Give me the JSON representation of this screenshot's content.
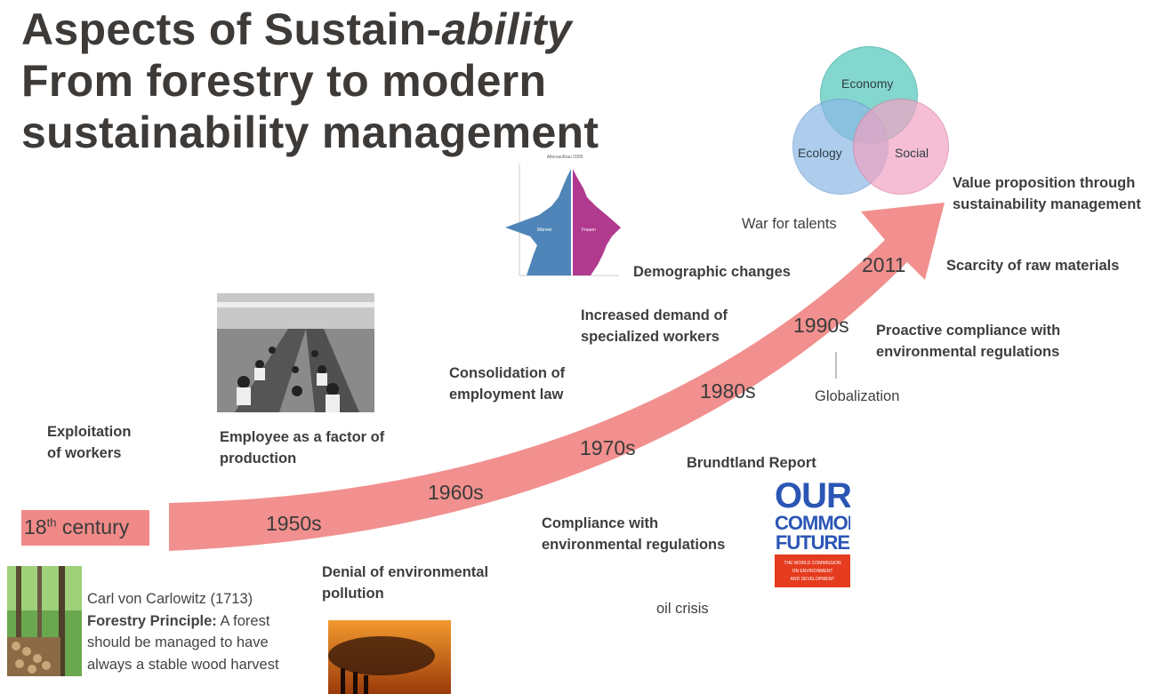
{
  "title": {
    "line1a": "Aspects of Sustain-",
    "line1b": "ability",
    "line2": "From forestry to modern",
    "line3": "sustainability management"
  },
  "venn": {
    "economy": "Economy",
    "ecology": "Ecology",
    "social": "Social",
    "colors": {
      "economy": "#6fd1c6",
      "ecology": "#8cb9e6",
      "social": "#f2a3c3"
    }
  },
  "timeline": {
    "arrow_color": "#f08a88",
    "eras": {
      "c18_pre": "18",
      "c18_sup": "th",
      "c18_post": " century",
      "e1950": "1950s",
      "e1960": "1960s",
      "e1970": "1970s",
      "e1980": "1980s",
      "e1990": "1990s",
      "e2011": "2011"
    }
  },
  "labels": {
    "exploitation": [
      "Exploitation",
      "of workers"
    ],
    "employee": [
      "Employee as a factor of",
      "production"
    ],
    "consolidation": [
      "Consolidation of",
      "employment law"
    ],
    "increased": [
      "Increased demand of",
      "specialized workers"
    ],
    "demographic": "Demographic changes",
    "war": "War for talents",
    "value": [
      "Value proposition through",
      "sustainability management"
    ],
    "scarcity": "Scarcity of raw materials",
    "proactive": [
      "Proactive compliance with",
      "environmental regulations"
    ],
    "globalization": "Globalization",
    "brundtland": "Brundtland Report",
    "compliance": [
      "Compliance with",
      "environmental regulations"
    ],
    "denial": [
      "Denial of environmental",
      "pollution"
    ],
    "oil": "oil crisis"
  },
  "carlowitz": {
    "line1": "Carl von Carlowitz (1713)",
    "bold": "Forestry Principle:",
    "rest1": " A forest",
    "line3": "should be managed to have",
    "line4": "always a stable wood harvest"
  },
  "book": {
    "line1": "OUR",
    "line2": "COMMON",
    "line3": "FUTURE",
    "sub1": "THE WORLD COMMISSION",
    "sub2": "ON ENVIRONMENT",
    "sub3": "AND DEVELOPMENT"
  },
  "pyramid": {
    "caption": "Altersaufbau 2009",
    "left_label": "Männer",
    "right_label": "Frauen"
  }
}
